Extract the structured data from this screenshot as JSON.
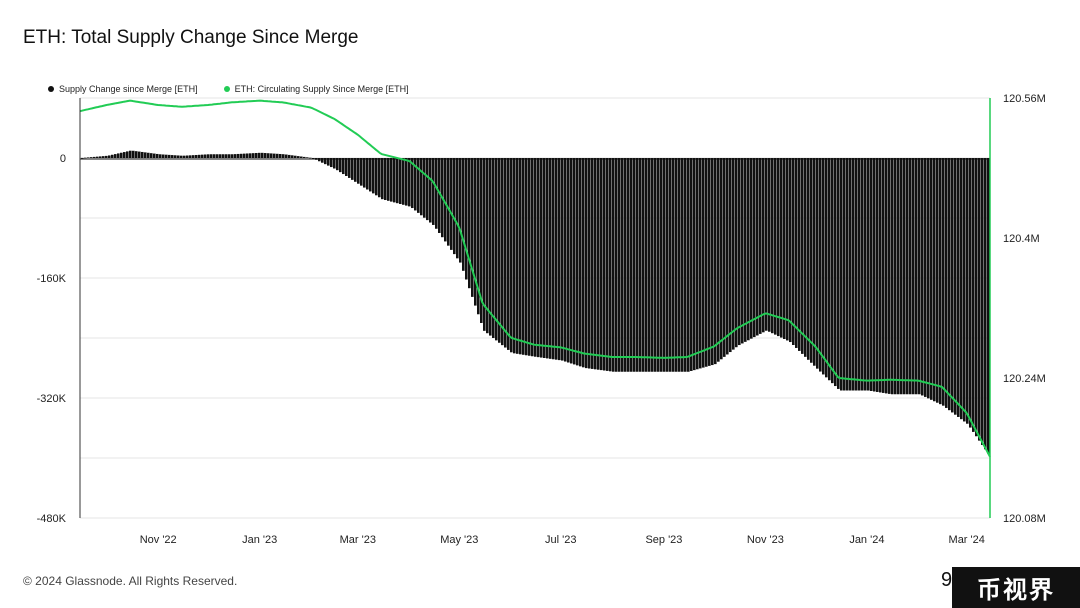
{
  "title": "ETH: Total Supply Change Since Merge",
  "legend": [
    {
      "label": "Supply Change since Merge [ETH]",
      "color": "#111111"
    },
    {
      "label": "ETH: Circulating Supply Since Merge [ETH]",
      "color": "#22cc55"
    }
  ],
  "footer": "© 2024 Glassnode. All Rights Reserved.",
  "cutoff_text": "9",
  "watermark": "币视界",
  "chart_data": {
    "type": "bar",
    "x_tick_labels": [
      "Nov '22",
      "Jan '23",
      "Mar '23",
      "May '23",
      "Jul '23",
      "Sep '23",
      "Nov '23",
      "Jan '24",
      "Mar '24"
    ],
    "x_start": "2022-09-15",
    "x_end": "2024-03-15",
    "y_left_ticks": [
      "0",
      "-160K",
      "-320K",
      "-480K"
    ],
    "y_left_range": [
      -480000,
      80000
    ],
    "y_right_ticks": [
      "120.56M",
      "120.4M",
      "120.24M",
      "120.08M"
    ],
    "y_right_range": [
      120080000,
      120560000
    ],
    "grid": "horizontal",
    "series": [
      {
        "name": "Supply Change since Merge [ETH]",
        "type": "bar",
        "points": [
          [
            "2022-09-15",
            0
          ],
          [
            "2022-10-01",
            3000
          ],
          [
            "2022-10-15",
            10000
          ],
          [
            "2022-11-01",
            5000
          ],
          [
            "2022-11-15",
            3000
          ],
          [
            "2022-12-01",
            5000
          ],
          [
            "2022-12-15",
            5000
          ],
          [
            "2023-01-01",
            7000
          ],
          [
            "2023-01-15",
            5000
          ],
          [
            "2023-02-01",
            0
          ],
          [
            "2023-02-15",
            -15000
          ],
          [
            "2023-03-01",
            -35000
          ],
          [
            "2023-03-15",
            -55000
          ],
          [
            "2023-04-01",
            -65000
          ],
          [
            "2023-04-15",
            -90000
          ],
          [
            "2023-05-01",
            -140000
          ],
          [
            "2023-05-15",
            -230000
          ],
          [
            "2023-06-01",
            -260000
          ],
          [
            "2023-06-15",
            -265000
          ],
          [
            "2023-07-01",
            -270000
          ],
          [
            "2023-07-15",
            -280000
          ],
          [
            "2023-08-01",
            -285000
          ],
          [
            "2023-08-15",
            -285000
          ],
          [
            "2023-09-01",
            -285000
          ],
          [
            "2023-09-15",
            -285000
          ],
          [
            "2023-10-01",
            -275000
          ],
          [
            "2023-10-15",
            -250000
          ],
          [
            "2023-11-01",
            -230000
          ],
          [
            "2023-11-15",
            -245000
          ],
          [
            "2023-12-01",
            -280000
          ],
          [
            "2023-12-15",
            -310000
          ],
          [
            "2024-01-01",
            -310000
          ],
          [
            "2024-01-15",
            -315000
          ],
          [
            "2024-02-01",
            -315000
          ],
          [
            "2024-02-15",
            -330000
          ],
          [
            "2024-03-01",
            -355000
          ],
          [
            "2024-03-15",
            -400000
          ]
        ]
      },
      {
        "name": "ETH: Circulating Supply Since Merge [ETH]",
        "type": "line",
        "color": "#22cc55",
        "points": [
          [
            "2022-09-15",
            120545000
          ],
          [
            "2022-10-01",
            120552000
          ],
          [
            "2022-10-15",
            120557000
          ],
          [
            "2022-11-01",
            120552000
          ],
          [
            "2022-11-15",
            120550000
          ],
          [
            "2022-12-01",
            120552000
          ],
          [
            "2022-12-15",
            120555000
          ],
          [
            "2023-01-01",
            120557000
          ],
          [
            "2023-01-15",
            120555000
          ],
          [
            "2023-02-01",
            120549000
          ],
          [
            "2023-02-15",
            120536000
          ],
          [
            "2023-03-01",
            120518000
          ],
          [
            "2023-03-15",
            120496000
          ],
          [
            "2023-04-01",
            120488000
          ],
          [
            "2023-04-15",
            120465000
          ],
          [
            "2023-05-01",
            120412000
          ],
          [
            "2023-05-15",
            120325000
          ],
          [
            "2023-06-01",
            120286000
          ],
          [
            "2023-06-15",
            120278000
          ],
          [
            "2023-07-01",
            120275000
          ],
          [
            "2023-07-15",
            120268000
          ],
          [
            "2023-08-01",
            120264000
          ],
          [
            "2023-08-15",
            120264000
          ],
          [
            "2023-09-01",
            120263000
          ],
          [
            "2023-09-15",
            120264000
          ],
          [
            "2023-10-01",
            120276000
          ],
          [
            "2023-10-15",
            120297000
          ],
          [
            "2023-11-01",
            120314000
          ],
          [
            "2023-11-15",
            120306000
          ],
          [
            "2023-12-01",
            120276000
          ],
          [
            "2023-12-15",
            120240000
          ],
          [
            "2024-01-01",
            120237000
          ],
          [
            "2024-01-15",
            120238000
          ],
          [
            "2024-02-01",
            120237000
          ],
          [
            "2024-02-15",
            120230000
          ],
          [
            "2024-03-01",
            120200000
          ],
          [
            "2024-03-15",
            120150000
          ]
        ]
      }
    ]
  }
}
